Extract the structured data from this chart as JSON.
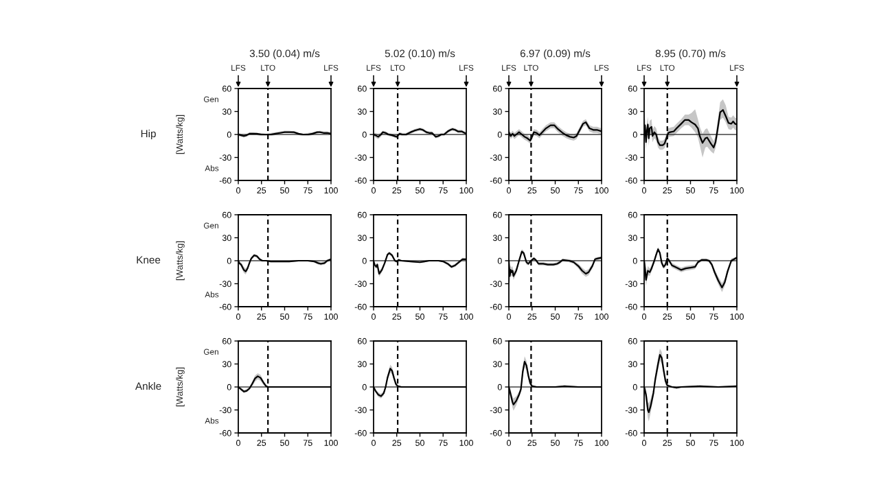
{
  "chart_data": [
    {
      "type": "line",
      "title": "3.50 (0.04) m/s",
      "ylabel": "[Watts/kg]",
      "annotations": [
        "Hip",
        "Gen",
        "Abs",
        "LFS",
        "LFS"
      ],
      "xlim": [
        0,
        100
      ],
      "ylim": [
        -60,
        60
      ],
      "xticks": [
        0,
        25,
        50,
        75,
        100
      ],
      "yticks": [
        -60,
        -30,
        0,
        30,
        60
      ],
      "ref_lines": [
        {
          "axis": "x",
          "value": 32,
          "label": "LTO",
          "color": "#000000",
          "line_style": "dashed"
        },
        {
          "axis": "y",
          "value": 0,
          "color": "#404040",
          "line_style": "solid"
        }
      ],
      "series": [
        {
          "color": "#000000",
          "x": [
            0,
            3,
            6,
            9,
            12,
            16,
            20,
            25,
            30,
            35,
            40,
            45,
            50,
            55,
            60,
            65,
            70,
            75,
            80,
            85,
            88,
            92,
            96,
            100
          ],
          "values": [
            0,
            -1,
            -2,
            -1,
            1,
            1,
            1,
            0,
            0,
            0,
            1,
            2,
            3,
            3,
            3,
            1,
            0,
            0,
            1,
            3,
            3,
            2,
            2,
            1
          ],
          "lower": [
            -2,
            -3,
            -4,
            -3,
            -1,
            -1,
            -1,
            -2,
            -2,
            -2,
            -1,
            1,
            2,
            2,
            1,
            -1,
            -2,
            -2,
            -1,
            1,
            2,
            1,
            1,
            -1
          ],
          "upper": [
            2,
            1,
            0,
            1,
            3,
            3,
            2,
            2,
            1,
            2,
            3,
            4,
            5,
            5,
            4,
            2,
            1,
            2,
            3,
            4,
            5,
            4,
            4,
            3
          ]
        }
      ]
    },
    {
      "type": "line",
      "title": "5.02 (0.10) m/s",
      "annotations": [
        "LFS",
        "LFS"
      ],
      "xlim": [
        0,
        100
      ],
      "ylim": [
        -60,
        60
      ],
      "xticks": [
        0,
        25,
        50,
        75,
        100
      ],
      "yticks": [
        -60,
        -30,
        0,
        30,
        60
      ],
      "ref_lines": [
        {
          "axis": "x",
          "value": 26,
          "label": "LTO",
          "color": "#000000",
          "line_style": "dashed"
        },
        {
          "axis": "y",
          "value": 0,
          "color": "#404040",
          "line_style": "solid"
        }
      ],
      "series": [
        {
          "color": "#000000",
          "x": [
            0,
            2,
            5,
            8,
            10,
            13,
            16,
            20,
            25,
            28,
            31,
            35,
            40,
            44,
            47,
            50,
            53,
            57,
            60,
            63,
            67,
            70,
            73,
            76,
            80,
            83,
            85,
            88,
            91,
            95,
            100
          ],
          "values": [
            0,
            -1,
            -3,
            0,
            3,
            2,
            0,
            -1,
            -3,
            1,
            0,
            0,
            3,
            5,
            6,
            7,
            6,
            3,
            2,
            2,
            -3,
            -2,
            0,
            0,
            4,
            6,
            7,
            6,
            4,
            4,
            1
          ],
          "lower": [
            -2,
            -4,
            -6,
            -3,
            1,
            0,
            -2,
            -3,
            -5,
            -1,
            -2,
            -2,
            1,
            3,
            4,
            5,
            4,
            1,
            0,
            0,
            -5,
            -4,
            -2,
            -2,
            2,
            4,
            5,
            4,
            2,
            2,
            -1
          ],
          "upper": [
            2,
            2,
            0,
            3,
            5,
            4,
            2,
            1,
            -1,
            3,
            2,
            2,
            5,
            7,
            8,
            9,
            8,
            5,
            4,
            4,
            -1,
            0,
            2,
            2,
            6,
            8,
            9,
            8,
            6,
            6,
            3
          ]
        }
      ]
    },
    {
      "type": "line",
      "title": "6.97 (0.09) m/s",
      "annotations": [
        "LFS",
        "LFS"
      ],
      "xlim": [
        0,
        100
      ],
      "ylim": [
        -60,
        60
      ],
      "xticks": [
        0,
        25,
        50,
        75,
        100
      ],
      "yticks": [
        -60,
        -30,
        0,
        30,
        60
      ],
      "ref_lines": [
        {
          "axis": "x",
          "value": 24,
          "label": "LTO",
          "color": "#000000",
          "line_style": "dashed"
        },
        {
          "axis": "y",
          "value": 0,
          "color": "#404040",
          "line_style": "solid"
        }
      ],
      "series": [
        {
          "color": "#000000",
          "x": [
            0,
            2,
            4,
            6,
            8,
            11,
            14,
            17,
            20,
            23,
            25,
            27,
            30,
            33,
            36,
            40,
            45,
            49,
            53,
            58,
            62,
            66,
            70,
            73,
            76,
            80,
            83,
            87,
            91,
            95,
            100
          ],
          "values": [
            3,
            -2,
            1,
            -2,
            0,
            3,
            0,
            -3,
            -5,
            -8,
            -3,
            3,
            2,
            -1,
            3,
            8,
            12,
            12,
            7,
            2,
            -1,
            -3,
            -4,
            -2,
            5,
            14,
            16,
            8,
            6,
            6,
            4
          ],
          "lower": [
            -1,
            -6,
            -3,
            -6,
            -4,
            -1,
            -4,
            -7,
            -9,
            -12,
            -7,
            -1,
            -2,
            -5,
            -1,
            4,
            8,
            8,
            3,
            -2,
            -5,
            -7,
            -8,
            -6,
            1,
            10,
            12,
            4,
            2,
            2,
            0
          ],
          "upper": [
            7,
            2,
            5,
            2,
            4,
            7,
            4,
            1,
            -1,
            -4,
            1,
            7,
            6,
            3,
            7,
            12,
            16,
            16,
            11,
            6,
            3,
            1,
            0,
            2,
            9,
            18,
            20,
            12,
            10,
            10,
            8
          ]
        }
      ]
    },
    {
      "type": "line",
      "title": "8.95 (0.70) m/s",
      "annotations": [
        "LFS",
        "LFS"
      ],
      "xlim": [
        0,
        100
      ],
      "ylim": [
        -60,
        60
      ],
      "xticks": [
        0,
        25,
        50,
        75,
        100
      ],
      "yticks": [
        -60,
        -30,
        0,
        30,
        60
      ],
      "ref_lines": [
        {
          "axis": "x",
          "value": 25,
          "label": "LTO",
          "color": "#000000",
          "line_style": "dashed"
        },
        {
          "axis": "y",
          "value": 0,
          "color": "#404040",
          "line_style": "solid"
        }
      ],
      "series": [
        {
          "color": "#000000",
          "x": [
            0,
            1,
            2,
            3,
            4,
            5,
            6,
            8,
            9,
            11,
            13,
            15,
            17,
            20,
            22,
            24,
            26,
            28,
            32,
            35,
            40,
            44,
            48,
            51,
            55,
            58,
            60,
            63,
            66,
            68,
            72,
            75,
            77,
            79,
            82,
            85,
            88,
            91,
            94,
            96,
            98,
            100
          ],
          "values": [
            0,
            12,
            -10,
            5,
            13,
            -5,
            8,
            10,
            -2,
            3,
            0,
            -10,
            -14,
            -14,
            -12,
            -5,
            2,
            3,
            4,
            8,
            14,
            19,
            19,
            16,
            13,
            8,
            -2,
            -11,
            -5,
            -4,
            -12,
            -17,
            -10,
            5,
            29,
            32,
            24,
            15,
            14,
            17,
            14,
            13
          ],
          "lower": [
            -8,
            2,
            -20,
            -5,
            3,
            -15,
            -2,
            0,
            -10,
            -5,
            -8,
            -17,
            -20,
            -20,
            -18,
            -11,
            -4,
            -3,
            -2,
            2,
            8,
            12,
            12,
            9,
            3,
            -4,
            -14,
            -30,
            -17,
            -16,
            -22,
            -25,
            -18,
            -5,
            19,
            22,
            16,
            7,
            6,
            9,
            6,
            5
          ],
          "upper": [
            8,
            22,
            0,
            15,
            23,
            5,
            18,
            20,
            6,
            11,
            8,
            -3,
            -8,
            -8,
            -6,
            1,
            8,
            9,
            10,
            14,
            20,
            26,
            26,
            28,
            33,
            20,
            10,
            1,
            7,
            8,
            -2,
            -9,
            -2,
            15,
            42,
            46,
            38,
            23,
            22,
            25,
            22,
            21
          ]
        }
      ]
    },
    {
      "type": "line",
      "ylabel": "[Watts/kg]",
      "annotations": [
        "Knee",
        "Gen",
        "Abs"
      ],
      "xlim": [
        0,
        100
      ],
      "ylim": [
        -60,
        60
      ],
      "xticks": [
        0,
        25,
        50,
        75,
        100
      ],
      "yticks": [
        -60,
        -30,
        0,
        30,
        60
      ],
      "ref_lines": [
        {
          "axis": "x",
          "value": 32,
          "color": "#000000",
          "line_style": "dashed"
        },
        {
          "axis": "y",
          "value": 0,
          "color": "#404040",
          "line_style": "solid"
        }
      ],
      "series": [
        {
          "color": "#000000",
          "x": [
            0,
            1,
            3,
            6,
            8,
            10,
            12,
            14,
            17,
            20,
            23,
            26,
            30,
            35,
            45,
            55,
            65,
            75,
            82,
            86,
            89,
            93,
            96,
            100
          ],
          "values": [
            0,
            -3,
            -5,
            -12,
            -14,
            -10,
            -3,
            3,
            7,
            6,
            2,
            0,
            0,
            -1,
            -1,
            -1,
            0,
            0,
            -1,
            -3,
            -4,
            -3,
            0,
            2
          ],
          "lower": [
            -1,
            -5,
            -8,
            -16,
            -18,
            -13,
            -5,
            1,
            5,
            4,
            0,
            -1,
            -1,
            -2,
            -2,
            -2,
            -1,
            -1,
            -2,
            -5,
            -6,
            -5,
            -2,
            1
          ],
          "upper": [
            1,
            -1,
            -2,
            -8,
            -10,
            -7,
            -1,
            5,
            9,
            8,
            4,
            1,
            1,
            0,
            0,
            0,
            1,
            1,
            0,
            -1,
            -2,
            -1,
            2,
            3
          ]
        }
      ]
    },
    {
      "type": "line",
      "xlim": [
        0,
        100
      ],
      "ylim": [
        -60,
        60
      ],
      "xticks": [
        0,
        25,
        50,
        75,
        100
      ],
      "yticks": [
        -60,
        -30,
        0,
        30,
        60
      ],
      "ref_lines": [
        {
          "axis": "x",
          "value": 26,
          "color": "#000000",
          "line_style": "dashed"
        },
        {
          "axis": "y",
          "value": 0,
          "color": "#404040",
          "line_style": "solid"
        }
      ],
      "series": [
        {
          "color": "#000000",
          "x": [
            0,
            1,
            3,
            4,
            6,
            9,
            12,
            15,
            17,
            20,
            23,
            25,
            27,
            30,
            40,
            50,
            55,
            60,
            70,
            75,
            80,
            84,
            88,
            93,
            96,
            100
          ],
          "values": [
            0,
            -5,
            -8,
            -5,
            -17,
            -12,
            -3,
            8,
            10,
            7,
            0,
            -1,
            1,
            0,
            -1,
            -2,
            -1,
            0,
            0,
            -1,
            -4,
            -8,
            -6,
            -1,
            2,
            2
          ],
          "lower": [
            -2,
            -8,
            -11,
            -8,
            -21,
            -15,
            -5,
            6,
            8,
            5,
            -2,
            -2,
            -1,
            -1,
            -2,
            -3,
            -2,
            -1,
            -1,
            -2,
            -6,
            -10,
            -8,
            -3,
            0,
            1
          ],
          "upper": [
            2,
            -2,
            -5,
            -2,
            -13,
            -9,
            -1,
            10,
            12,
            9,
            2,
            0,
            3,
            1,
            0,
            -1,
            0,
            1,
            1,
            0,
            -2,
            -6,
            -4,
            1,
            4,
            3
          ]
        }
      ]
    },
    {
      "type": "line",
      "xlim": [
        0,
        100
      ],
      "ylim": [
        -60,
        60
      ],
      "xticks": [
        0,
        25,
        50,
        75,
        100
      ],
      "yticks": [
        -60,
        -30,
        0,
        30,
        60
      ],
      "ref_lines": [
        {
          "axis": "x",
          "value": 24,
          "color": "#000000",
          "line_style": "dashed"
        },
        {
          "axis": "y",
          "value": 0,
          "color": "#404040",
          "line_style": "solid"
        }
      ],
      "series": [
        {
          "color": "#000000",
          "x": [
            0,
            1,
            2,
            3,
            4,
            5,
            8,
            11,
            14,
            16,
            19,
            21,
            23,
            25,
            27,
            29,
            32,
            37,
            42,
            48,
            52,
            55,
            58,
            65,
            70,
            75,
            79,
            83,
            86,
            90,
            93,
            96,
            100
          ],
          "values": [
            0,
            -20,
            -12,
            -15,
            -13,
            -20,
            -13,
            0,
            12,
            10,
            -2,
            -4,
            -1,
            1,
            3,
            1,
            -4,
            -4,
            -5,
            -5,
            -4,
            -2,
            1,
            0,
            -2,
            -7,
            -13,
            -17,
            -15,
            -7,
            2,
            3,
            4
          ],
          "lower": [
            -4,
            -30,
            -18,
            -21,
            -19,
            -25,
            -17,
            -3,
            9,
            7,
            -5,
            -6,
            -3,
            -1,
            1,
            -1,
            -6,
            -6,
            -7,
            -7,
            -6,
            -4,
            -1,
            -2,
            -4,
            -10,
            -17,
            -21,
            -19,
            -10,
            0,
            1,
            2
          ],
          "upper": [
            4,
            -10,
            -6,
            -9,
            -7,
            -15,
            -9,
            3,
            15,
            13,
            1,
            -2,
            1,
            3,
            5,
            3,
            -2,
            -2,
            -3,
            -3,
            -2,
            0,
            3,
            2,
            0,
            -4,
            -9,
            -13,
            -11,
            -4,
            4,
            5,
            6
          ]
        }
      ]
    },
    {
      "type": "line",
      "xlim": [
        0,
        100
      ],
      "ylim": [
        -60,
        60
      ],
      "xticks": [
        0,
        25,
        50,
        75,
        100
      ],
      "yticks": [
        -60,
        -30,
        0,
        30,
        60
      ],
      "ref_lines": [
        {
          "axis": "x",
          "value": 25,
          "color": "#000000",
          "line_style": "dashed"
        },
        {
          "axis": "y",
          "value": 0,
          "color": "#404040",
          "line_style": "solid"
        }
      ],
      "series": [
        {
          "color": "#000000",
          "x": [
            0,
            1,
            2,
            4,
            6,
            8,
            11,
            13,
            15,
            17,
            19,
            21,
            23,
            25,
            27,
            30,
            35,
            40,
            45,
            50,
            55,
            58,
            62,
            67,
            70,
            73,
            76,
            80,
            84,
            87,
            90,
            94,
            97,
            100
          ],
          "values": [
            0,
            -10,
            -25,
            -13,
            -15,
            -10,
            0,
            8,
            15,
            10,
            -3,
            -8,
            -5,
            3,
            0,
            -6,
            -9,
            -12,
            -10,
            -9,
            -8,
            -2,
            1,
            1,
            0,
            -5,
            -15,
            -26,
            -35,
            -28,
            -14,
            0,
            2,
            4
          ],
          "lower": [
            -5,
            -18,
            -33,
            -19,
            -20,
            -14,
            -3,
            5,
            12,
            7,
            -6,
            -11,
            -8,
            0,
            -3,
            -9,
            -12,
            -15,
            -13,
            -12,
            -11,
            -4,
            -1,
            -1,
            -2,
            -8,
            -19,
            -31,
            -41,
            -33,
            -18,
            -3,
            0,
            2
          ],
          "upper": [
            5,
            -2,
            -17,
            -7,
            -10,
            -6,
            3,
            11,
            18,
            13,
            0,
            -5,
            -2,
            6,
            3,
            -3,
            -6,
            -9,
            -7,
            -6,
            -5,
            0,
            3,
            3,
            2,
            -2,
            -11,
            -21,
            -29,
            -23,
            -10,
            3,
            4,
            6
          ]
        }
      ]
    },
    {
      "type": "line",
      "ylabel": "[Watts/kg]",
      "annotations": [
        "Ankle",
        "Gen",
        "Abs"
      ],
      "xlim": [
        0,
        100
      ],
      "ylim": [
        -60,
        60
      ],
      "xticks": [
        0,
        25,
        50,
        75,
        100
      ],
      "yticks": [
        -60,
        -30,
        0,
        30,
        60
      ],
      "ref_lines": [
        {
          "axis": "x",
          "value": 32,
          "color": "#000000",
          "line_style": "dashed"
        },
        {
          "axis": "y",
          "value": 0,
          "color": "#404040",
          "line_style": "solid"
        }
      ],
      "series": [
        {
          "color": "#000000",
          "x": [
            0,
            3,
            6,
            9,
            12,
            15,
            18,
            21,
            24,
            27,
            30,
            32,
            40,
            60,
            80,
            100
          ],
          "values": [
            0,
            -3,
            -6,
            -5,
            -2,
            4,
            11,
            14,
            12,
            6,
            1,
            0,
            0,
            0,
            0,
            0
          ],
          "lower": [
            -1,
            -5,
            -8,
            -7,
            -4,
            1,
            7,
            10,
            8,
            3,
            -1,
            -1,
            -1,
            -1,
            -1,
            -1
          ],
          "upper": [
            1,
            -1,
            -4,
            -3,
            0,
            7,
            15,
            18,
            16,
            9,
            3,
            1,
            1,
            1,
            1,
            1
          ]
        }
      ]
    },
    {
      "type": "line",
      "xlim": [
        0,
        100
      ],
      "ylim": [
        -60,
        60
      ],
      "xticks": [
        0,
        25,
        50,
        75,
        100
      ],
      "yticks": [
        -60,
        -30,
        0,
        30,
        60
      ],
      "ref_lines": [
        {
          "axis": "x",
          "value": 26,
          "color": "#000000",
          "line_style": "dashed"
        },
        {
          "axis": "y",
          "value": 0,
          "color": "#404040",
          "line_style": "solid"
        }
      ],
      "series": [
        {
          "color": "#000000",
          "x": [
            0,
            2,
            5,
            8,
            11,
            13,
            15,
            18,
            20,
            22,
            24,
            26,
            30,
            50,
            75,
            100
          ],
          "values": [
            0,
            -5,
            -10,
            -12,
            -8,
            0,
            12,
            24,
            21,
            12,
            4,
            1,
            0,
            0,
            0,
            0
          ],
          "lower": [
            -1,
            -7,
            -13,
            -15,
            -11,
            -3,
            8,
            19,
            16,
            8,
            1,
            -1,
            -1,
            -1,
            -1,
            -1
          ],
          "upper": [
            1,
            -3,
            -7,
            -9,
            -5,
            3,
            16,
            29,
            26,
            16,
            7,
            3,
            1,
            1,
            1,
            1
          ]
        }
      ]
    },
    {
      "type": "line",
      "xlim": [
        0,
        100
      ],
      "ylim": [
        -60,
        60
      ],
      "xticks": [
        0,
        25,
        50,
        75,
        100
      ],
      "yticks": [
        -60,
        -30,
        0,
        30,
        60
      ],
      "ref_lines": [
        {
          "axis": "x",
          "value": 24,
          "color": "#000000",
          "line_style": "dashed"
        },
        {
          "axis": "y",
          "value": 0,
          "color": "#404040",
          "line_style": "solid"
        }
      ],
      "series": [
        {
          "color": "#000000",
          "x": [
            0,
            2,
            4,
            5,
            8,
            11,
            13,
            15,
            17,
            19,
            21,
            23,
            25,
            30,
            50,
            60,
            75,
            100
          ],
          "values": [
            0,
            -10,
            -20,
            -23,
            -18,
            -10,
            -3,
            20,
            33,
            28,
            15,
            5,
            1,
            0,
            0,
            1,
            0,
            0
          ],
          "lower": [
            -2,
            -16,
            -27,
            -31,
            -24,
            -14,
            -7,
            14,
            26,
            22,
            10,
            2,
            -1,
            -1,
            -1,
            0,
            -1,
            -1
          ],
          "upper": [
            2,
            -4,
            -13,
            -15,
            -12,
            -6,
            1,
            26,
            40,
            34,
            20,
            8,
            3,
            1,
            1,
            2,
            1,
            1
          ]
        }
      ]
    },
    {
      "type": "line",
      "xlim": [
        0,
        100
      ],
      "ylim": [
        -60,
        60
      ],
      "xticks": [
        0,
        25,
        50,
        75,
        100
      ],
      "yticks": [
        -60,
        -30,
        0,
        30,
        60
      ],
      "ref_lines": [
        {
          "axis": "x",
          "value": 25,
          "color": "#000000",
          "line_style": "dashed"
        },
        {
          "axis": "y",
          "value": 0,
          "color": "#404040",
          "line_style": "solid"
        }
      ],
      "series": [
        {
          "color": "#000000",
          "x": [
            0,
            2,
            4,
            5,
            7,
            10,
            12,
            15,
            17,
            19,
            21,
            23,
            25,
            30,
            35,
            40,
            60,
            80,
            100
          ],
          "values": [
            0,
            -10,
            -30,
            -33,
            -25,
            -8,
            10,
            30,
            42,
            38,
            22,
            8,
            2,
            0,
            -1,
            0,
            1,
            0,
            1
          ],
          "lower": [
            -3,
            -18,
            -40,
            -45,
            -34,
            -14,
            4,
            22,
            34,
            30,
            15,
            3,
            0,
            -1,
            -2,
            -1,
            0,
            -1,
            0
          ],
          "upper": [
            3,
            -2,
            -20,
            -21,
            -16,
            -2,
            16,
            38,
            50,
            46,
            29,
            13,
            4,
            1,
            1,
            1,
            2,
            1,
            2
          ]
        }
      ]
    }
  ]
}
